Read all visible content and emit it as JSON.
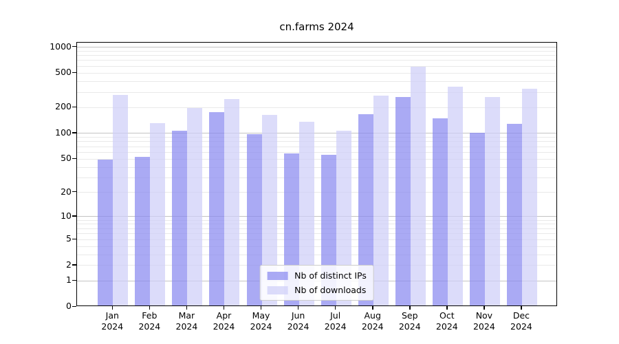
{
  "title": "cn.farms 2024",
  "legend": {
    "items": [
      {
        "label": "Nb of distinct IPs"
      },
      {
        "label": "Nb of downloads"
      }
    ]
  },
  "chart_data": {
    "type": "bar",
    "title": "cn.farms 2024",
    "categories": [
      "Jan 2024",
      "Feb 2024",
      "Mar 2024",
      "Apr 2024",
      "May 2024",
      "Jun 2024",
      "Jul 2024",
      "Aug 2024",
      "Sep 2024",
      "Oct 2024",
      "Nov 2024",
      "Dec 2024"
    ],
    "series": [
      {
        "name": "Nb of distinct IPs",
        "color": "#8989f0",
        "values": [
          47,
          51,
          103,
          170,
          95,
          56,
          54,
          162,
          255,
          144,
          97,
          124
        ]
      },
      {
        "name": "Nb of downloads",
        "color": "#cecef8",
        "values": [
          270,
          126,
          190,
          243,
          157,
          132,
          103,
          267,
          570,
          334,
          257,
          317
        ]
      }
    ],
    "yscale": "log1p",
    "ylim": [
      0,
      1000
    ],
    "yticks": [
      "0",
      "1",
      "2",
      "5",
      "10",
      "20",
      "50",
      "100",
      "200",
      "500",
      "1000"
    ],
    "grid": {
      "major_lines": [
        1,
        10,
        100,
        1000
      ],
      "minor_decades": [
        1,
        10,
        100
      ]
    },
    "legend_position": "lower center",
    "colors": {
      "major_grid": "#c3c3c3",
      "minor_grid": "#e9e9e9",
      "axis": "#000000"
    }
  }
}
